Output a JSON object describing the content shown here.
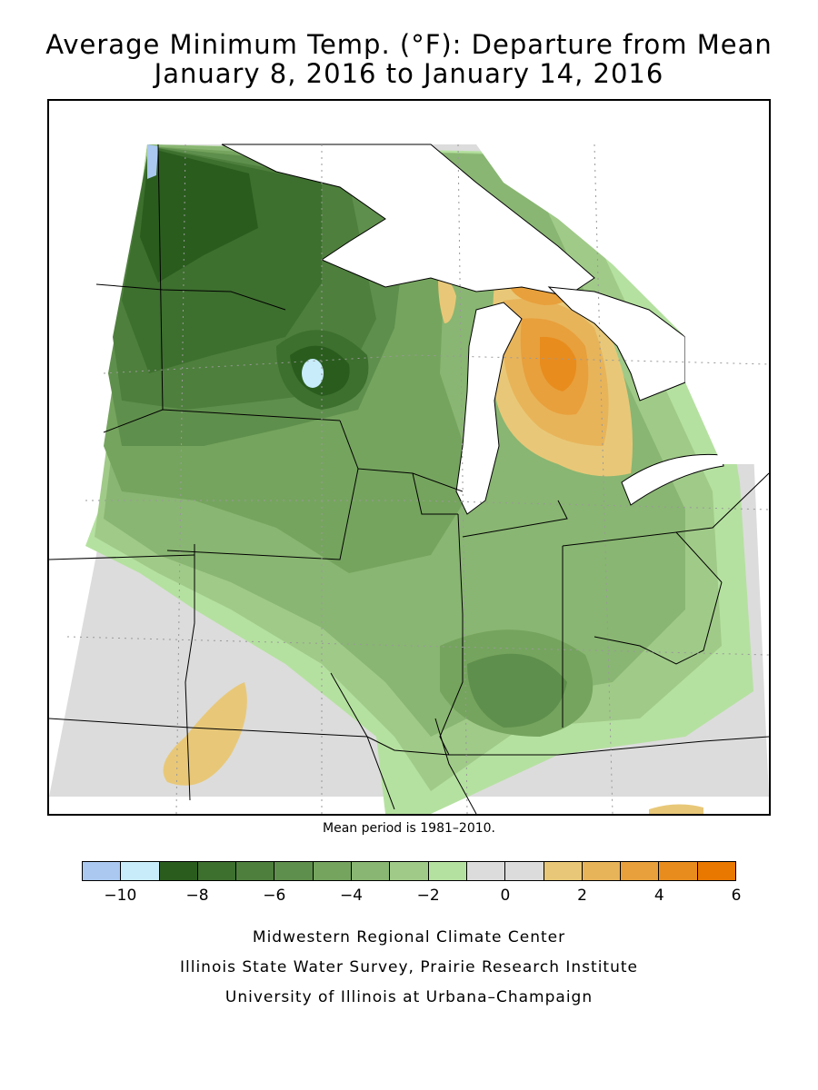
{
  "title_line1": "Average Minimum Temp. (°F): Departure from Mean",
  "title_line2": "January 8, 2016 to January 14, 2016",
  "mean_period_note": "Mean period is 1981–2010.",
  "legend": {
    "bins": [
      {
        "from": -11,
        "to": -10,
        "color": "#aac8f0"
      },
      {
        "from": -10,
        "to": -9,
        "color": "#c8ecfa"
      },
      {
        "from": -9,
        "to": -8,
        "color": "#2a5c1e"
      },
      {
        "from": -8,
        "to": -7,
        "color": "#3d6f2e"
      },
      {
        "from": -7,
        "to": -6,
        "color": "#4e7f3d"
      },
      {
        "from": -6,
        "to": -5,
        "color": "#5f8f4c"
      },
      {
        "from": -5,
        "to": -4,
        "color": "#75a45e"
      },
      {
        "from": -4,
        "to": -3,
        "color": "#89b672"
      },
      {
        "from": -3,
        "to": -2,
        "color": "#a0ca88"
      },
      {
        "from": -2,
        "to": -1,
        "color": "#b5e1a0"
      },
      {
        "from": -1,
        "to": 0,
        "color": "#dcdcdc"
      },
      {
        "from": 0,
        "to": 1,
        "color": "#dcdcdc"
      },
      {
        "from": 1,
        "to": 2,
        "color": "#e8c878"
      },
      {
        "from": 2,
        "to": 3,
        "color": "#e8b45a"
      },
      {
        "from": 3,
        "to": 4,
        "color": "#e8a03c"
      },
      {
        "from": 4,
        "to": 5,
        "color": "#e88c1e"
      },
      {
        "from": 5,
        "to": 6,
        "color": "#e87800"
      }
    ],
    "ticks": [
      {
        "value": -10,
        "label": "−10"
      },
      {
        "value": -8,
        "label": "−8"
      },
      {
        "value": -6,
        "label": "−6"
      },
      {
        "value": -4,
        "label": "−4"
      },
      {
        "value": -2,
        "label": "−2"
      },
      {
        "value": 0,
        "label": "0"
      },
      {
        "value": 2,
        "label": "2"
      },
      {
        "value": 4,
        "label": "4"
      },
      {
        "value": 6,
        "label": "6"
      }
    ]
  },
  "credits": {
    "line1": "Midwestern Regional Climate Center",
    "line2": "Illinois State Water Survey, Prairie Research Institute",
    "line3": "University of Illinois at Urbana–Champaign"
  },
  "colors": {
    "lake": "#ffffff",
    "border": "#000000"
  }
}
